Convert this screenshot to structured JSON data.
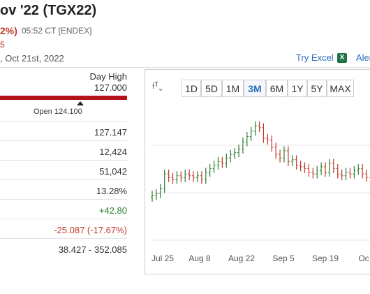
{
  "header": {
    "title": "ov '22 (TGX22)",
    "change": "2%)",
    "time": "05:52 CT [ENDEX]",
    "sub_value": "5",
    "date": ", Oct 21st, 2022",
    "try_excel": "Try Excel",
    "excel_icon_glyph": "X",
    "alerts": "Aler"
  },
  "range": {
    "day_high_label": "Day High",
    "day_high_value": "127.000",
    "open_label": "Open 124.100"
  },
  "stats": [
    {
      "value": "127.147",
      "tone": "neutral"
    },
    {
      "value": "12,424",
      "tone": "neutral"
    },
    {
      "value": "51,042",
      "tone": "neutral"
    },
    {
      "value": "13.28%",
      "tone": "neutral"
    },
    {
      "value": "+42.80",
      "tone": "positive"
    },
    {
      "value": "-25.087 (-17.67%)",
      "tone": "negative"
    },
    {
      "value": "38.427 - 352.085",
      "tone": "neutral"
    }
  ],
  "chart_controls": {
    "chart_type_glyph": "⟊ᵀ⌄",
    "buttons": [
      "1D",
      "5D",
      "1M",
      "3M",
      "6M",
      "1Y",
      "5Y",
      "MAX"
    ],
    "active": "3M"
  },
  "chart_data": {
    "type": "ohlc",
    "xlabels": [
      "Jul 25",
      "Aug 8",
      "Aug 22",
      "Sep 5",
      "Sep 19",
      "Oc"
    ],
    "colors": {
      "up": "#2e7d32",
      "down": "#c0392b",
      "grid": "#e6e6e6"
    },
    "closes": [
      112,
      113,
      116,
      124,
      122,
      121,
      123,
      122,
      124,
      123,
      122,
      123,
      121,
      125,
      127,
      129,
      131,
      130,
      133,
      135,
      136,
      138,
      142,
      145,
      148,
      151,
      150,
      144,
      143,
      139,
      135,
      133,
      137,
      131,
      132,
      129,
      128,
      127,
      125,
      124,
      126,
      128,
      125,
      130,
      127,
      124,
      123,
      125,
      124,
      126,
      127,
      124,
      122,
      120
    ]
  }
}
